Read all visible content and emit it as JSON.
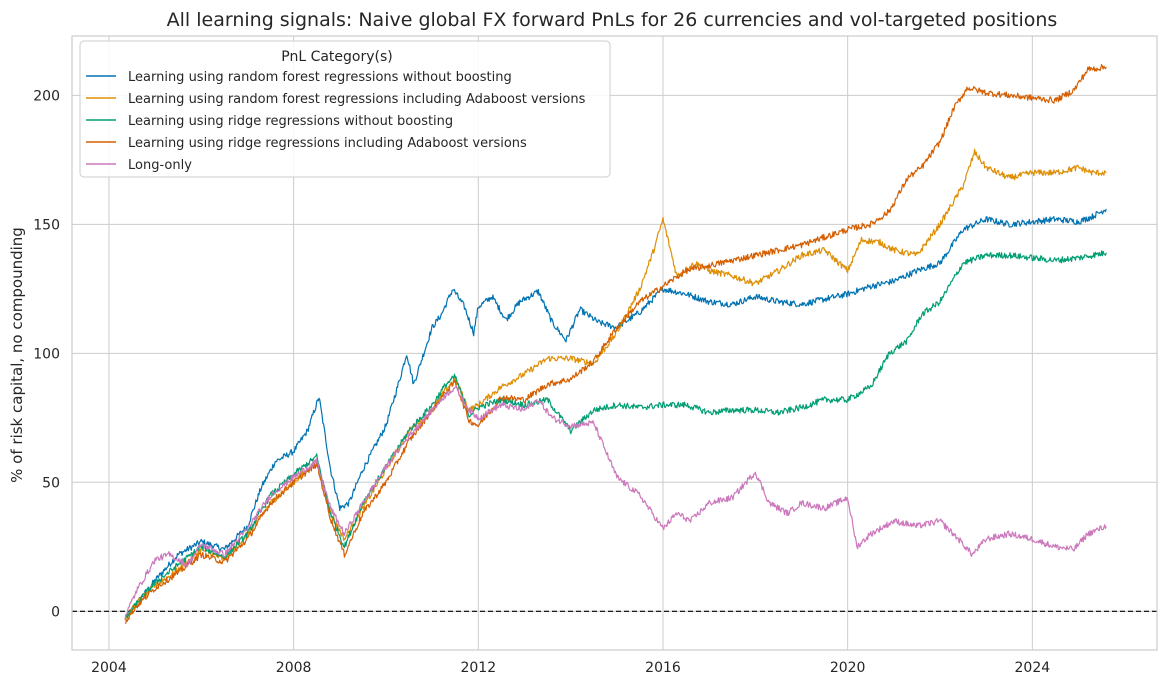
{
  "chart_data": {
    "type": "line",
    "title": "All learning signals: Naive global FX forward PnLs for 26 currencies and vol-targeted positions",
    "xlabel": "",
    "ylabel": "% of risk capital, no compounding",
    "xlim": [
      2003.2,
      2026.7
    ],
    "ylim": [
      -15,
      223
    ],
    "x_ticks": [
      2004,
      2008,
      2012,
      2016,
      2020,
      2024
    ],
    "x_tick_labels": [
      "2004",
      "2008",
      "2012",
      "2016",
      "2020",
      "2024"
    ],
    "y_ticks": [
      0,
      50,
      100,
      150,
      200
    ],
    "y_tick_labels": [
      "0",
      "50",
      "100",
      "150",
      "200"
    ],
    "grid": true,
    "zero_line": {
      "y": 0,
      "style": "dashed",
      "color": "#000000"
    },
    "legend": {
      "title": "PnL Category(s)",
      "placement": "top-left"
    },
    "series": [
      {
        "name": "Learning using random forest regressions without boosting",
        "color": "#0173b2",
        "points": [
          [
            2004.35,
            -3
          ],
          [
            2004.6,
            3
          ],
          [
            2005.0,
            12
          ],
          [
            2005.5,
            22
          ],
          [
            2006.0,
            27
          ],
          [
            2006.5,
            24
          ],
          [
            2007.0,
            33
          ],
          [
            2007.3,
            48
          ],
          [
            2007.6,
            58
          ],
          [
            2008.0,
            62
          ],
          [
            2008.3,
            70
          ],
          [
            2008.55,
            83
          ],
          [
            2008.8,
            55
          ],
          [
            2009.0,
            40
          ],
          [
            2009.2,
            42
          ],
          [
            2009.5,
            55
          ],
          [
            2010.0,
            72
          ],
          [
            2010.3,
            90
          ],
          [
            2010.45,
            100
          ],
          [
            2010.6,
            88
          ],
          [
            2011.0,
            110
          ],
          [
            2011.2,
            115
          ],
          [
            2011.45,
            125
          ],
          [
            2011.7,
            118
          ],
          [
            2011.9,
            108
          ],
          [
            2012.0,
            118
          ],
          [
            2012.3,
            122
          ],
          [
            2012.6,
            113
          ],
          [
            2012.9,
            120
          ],
          [
            2013.3,
            124
          ],
          [
            2013.6,
            112
          ],
          [
            2013.9,
            105
          ],
          [
            2014.2,
            117
          ],
          [
            2014.6,
            112
          ],
          [
            2015.0,
            110
          ],
          [
            2015.5,
            116
          ],
          [
            2016.0,
            125
          ],
          [
            2016.5,
            123
          ],
          [
            2017.0,
            120
          ],
          [
            2017.5,
            119
          ],
          [
            2018.0,
            122
          ],
          [
            2018.5,
            120
          ],
          [
            2019.0,
            119
          ],
          [
            2019.5,
            121
          ],
          [
            2020.0,
            123
          ],
          [
            2020.5,
            126
          ],
          [
            2021.0,
            128
          ],
          [
            2021.5,
            132
          ],
          [
            2022.0,
            135
          ],
          [
            2022.5,
            148
          ],
          [
            2023.0,
            152
          ],
          [
            2023.5,
            150
          ],
          [
            2024.0,
            151
          ],
          [
            2024.5,
            152
          ],
          [
            2025.0,
            151
          ],
          [
            2025.3,
            153
          ],
          [
            2025.6,
            156
          ]
        ]
      },
      {
        "name": "Learning using random forest regressions including Adaboost versions",
        "color": "#de8f05",
        "points": [
          [
            2004.35,
            -3
          ],
          [
            2004.6,
            3
          ],
          [
            2005.0,
            10
          ],
          [
            2005.5,
            16
          ],
          [
            2006.0,
            24
          ],
          [
            2006.5,
            20
          ],
          [
            2007.0,
            30
          ],
          [
            2007.5,
            42
          ],
          [
            2008.0,
            50
          ],
          [
            2008.5,
            58
          ],
          [
            2008.8,
            38
          ],
          [
            2009.1,
            28
          ],
          [
            2009.5,
            40
          ],
          [
            2010.0,
            55
          ],
          [
            2010.5,
            70
          ],
          [
            2011.0,
            78
          ],
          [
            2011.3,
            86
          ],
          [
            2011.5,
            90
          ],
          [
            2011.8,
            78
          ],
          [
            2012.0,
            80
          ],
          [
            2012.5,
            87
          ],
          [
            2013.0,
            92
          ],
          [
            2013.5,
            98
          ],
          [
            2014.0,
            98
          ],
          [
            2014.5,
            96
          ],
          [
            2015.0,
            108
          ],
          [
            2015.5,
            125
          ],
          [
            2015.8,
            140
          ],
          [
            2016.0,
            152
          ],
          [
            2016.3,
            130
          ],
          [
            2016.7,
            135
          ],
          [
            2017.0,
            132
          ],
          [
            2017.5,
            130
          ],
          [
            2018.0,
            127
          ],
          [
            2018.5,
            132
          ],
          [
            2019.0,
            138
          ],
          [
            2019.5,
            140
          ],
          [
            2020.0,
            132
          ],
          [
            2020.3,
            144
          ],
          [
            2020.7,
            143
          ],
          [
            2021.0,
            140
          ],
          [
            2021.5,
            138
          ],
          [
            2022.0,
            150
          ],
          [
            2022.5,
            165
          ],
          [
            2022.75,
            178
          ],
          [
            2023.0,
            172
          ],
          [
            2023.5,
            168
          ],
          [
            2024.0,
            170
          ],
          [
            2024.5,
            170
          ],
          [
            2025.0,
            172
          ],
          [
            2025.3,
            170
          ],
          [
            2025.6,
            170
          ]
        ]
      },
      {
        "name": "Learning using ridge regressions without boosting",
        "color": "#029e73",
        "points": [
          [
            2004.35,
            -3
          ],
          [
            2004.6,
            3
          ],
          [
            2005.0,
            11
          ],
          [
            2005.5,
            18
          ],
          [
            2006.0,
            25
          ],
          [
            2006.5,
            21
          ],
          [
            2007.0,
            30
          ],
          [
            2007.5,
            45
          ],
          [
            2008.0,
            53
          ],
          [
            2008.5,
            60
          ],
          [
            2008.8,
            38
          ],
          [
            2009.1,
            25
          ],
          [
            2009.5,
            42
          ],
          [
            2010.0,
            56
          ],
          [
            2010.5,
            70
          ],
          [
            2011.0,
            80
          ],
          [
            2011.3,
            88
          ],
          [
            2011.5,
            91
          ],
          [
            2011.8,
            76
          ],
          [
            2012.0,
            79
          ],
          [
            2012.5,
            82
          ],
          [
            2013.0,
            80
          ],
          [
            2013.5,
            82
          ],
          [
            2014.0,
            70
          ],
          [
            2014.5,
            78
          ],
          [
            2015.0,
            80
          ],
          [
            2015.5,
            79
          ],
          [
            2016.0,
            80
          ],
          [
            2016.5,
            80
          ],
          [
            2017.0,
            77
          ],
          [
            2017.5,
            78
          ],
          [
            2018.0,
            78
          ],
          [
            2018.5,
            77
          ],
          [
            2019.0,
            79
          ],
          [
            2019.5,
            82
          ],
          [
            2020.0,
            82
          ],
          [
            2020.5,
            87
          ],
          [
            2020.9,
            100
          ],
          [
            2021.3,
            105
          ],
          [
            2021.6,
            115
          ],
          [
            2022.0,
            120
          ],
          [
            2022.5,
            135
          ],
          [
            2023.0,
            138
          ],
          [
            2023.5,
            138
          ],
          [
            2024.0,
            137
          ],
          [
            2024.5,
            136
          ],
          [
            2025.0,
            137
          ],
          [
            2025.3,
            138
          ],
          [
            2025.6,
            139
          ]
        ]
      },
      {
        "name": "Learning using ridge regressions including Adaboost versions",
        "color": "#d55e00",
        "points": [
          [
            2004.35,
            -4
          ],
          [
            2004.6,
            2
          ],
          [
            2005.0,
            9
          ],
          [
            2005.5,
            15
          ],
          [
            2006.0,
            22
          ],
          [
            2006.5,
            19
          ],
          [
            2007.0,
            28
          ],
          [
            2007.5,
            42
          ],
          [
            2008.0,
            50
          ],
          [
            2008.5,
            57
          ],
          [
            2008.8,
            36
          ],
          [
            2009.1,
            22
          ],
          [
            2009.5,
            38
          ],
          [
            2010.0,
            50
          ],
          [
            2010.5,
            66
          ],
          [
            2011.0,
            78
          ],
          [
            2011.3,
            85
          ],
          [
            2011.5,
            89
          ],
          [
            2011.8,
            74
          ],
          [
            2012.0,
            72
          ],
          [
            2012.5,
            83
          ],
          [
            2013.0,
            82
          ],
          [
            2013.5,
            88
          ],
          [
            2014.0,
            90
          ],
          [
            2014.5,
            97
          ],
          [
            2015.0,
            110
          ],
          [
            2015.5,
            120
          ],
          [
            2016.0,
            126
          ],
          [
            2016.5,
            132
          ],
          [
            2017.0,
            134
          ],
          [
            2017.5,
            136
          ],
          [
            2018.0,
            138
          ],
          [
            2018.5,
            140
          ],
          [
            2019.0,
            142
          ],
          [
            2019.5,
            145
          ],
          [
            2020.0,
            148
          ],
          [
            2020.5,
            150
          ],
          [
            2020.9,
            155
          ],
          [
            2021.3,
            168
          ],
          [
            2021.6,
            172
          ],
          [
            2022.0,
            182
          ],
          [
            2022.3,
            195
          ],
          [
            2022.6,
            203
          ],
          [
            2023.0,
            201
          ],
          [
            2023.5,
            200
          ],
          [
            2024.0,
            199
          ],
          [
            2024.5,
            198
          ],
          [
            2024.9,
            202
          ],
          [
            2025.2,
            210
          ],
          [
            2025.6,
            211
          ]
        ]
      },
      {
        "name": "Long-only",
        "color": "#cc78bc",
        "points": [
          [
            2004.35,
            -2
          ],
          [
            2004.6,
            8
          ],
          [
            2005.0,
            20
          ],
          [
            2005.3,
            22
          ],
          [
            2005.7,
            18
          ],
          [
            2006.0,
            26
          ],
          [
            2006.5,
            22
          ],
          [
            2007.0,
            32
          ],
          [
            2007.5,
            45
          ],
          [
            2008.0,
            52
          ],
          [
            2008.5,
            58
          ],
          [
            2008.8,
            40
          ],
          [
            2009.1,
            30
          ],
          [
            2009.5,
            42
          ],
          [
            2010.0,
            56
          ],
          [
            2010.5,
            68
          ],
          [
            2011.0,
            78
          ],
          [
            2011.3,
            84
          ],
          [
            2011.5,
            87
          ],
          [
            2011.8,
            78
          ],
          [
            2012.0,
            75
          ],
          [
            2012.5,
            80
          ],
          [
            2013.0,
            78
          ],
          [
            2013.3,
            82
          ],
          [
            2013.6,
            75
          ],
          [
            2014.0,
            72
          ],
          [
            2014.5,
            73
          ],
          [
            2015.0,
            52
          ],
          [
            2015.5,
            45
          ],
          [
            2016.0,
            32
          ],
          [
            2016.3,
            38
          ],
          [
            2016.6,
            35
          ],
          [
            2017.0,
            42
          ],
          [
            2017.5,
            44
          ],
          [
            2017.8,
            50
          ],
          [
            2018.0,
            54
          ],
          [
            2018.3,
            42
          ],
          [
            2018.7,
            38
          ],
          [
            2019.0,
            42
          ],
          [
            2019.5,
            40
          ],
          [
            2020.0,
            44
          ],
          [
            2020.2,
            25
          ],
          [
            2020.5,
            30
          ],
          [
            2021.0,
            35
          ],
          [
            2021.5,
            33
          ],
          [
            2022.0,
            35
          ],
          [
            2022.4,
            28
          ],
          [
            2022.7,
            22
          ],
          [
            2023.0,
            28
          ],
          [
            2023.5,
            30
          ],
          [
            2024.0,
            28
          ],
          [
            2024.5,
            25
          ],
          [
            2024.9,
            24
          ],
          [
            2025.2,
            30
          ],
          [
            2025.6,
            33
          ]
        ]
      }
    ]
  }
}
